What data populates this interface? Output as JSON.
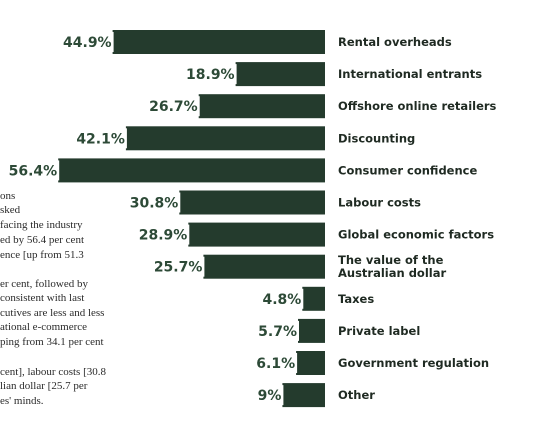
{
  "background_text": {
    "lines": [
      "ons",
      "sked",
      "facing the industry",
      "ed by 56.4 per cent",
      "ence [up from 51.3",
      "er cent, followed by",
      "consistent with last",
      "cutives are less and less",
      "ational e-commerce",
      "ping from 34.1 per cent",
      "cent], labour costs [30.8",
      "lian dollar [25.7 per",
      "es' minds."
    ]
  },
  "chart_data": {
    "type": "bar",
    "orientation": "horizontal",
    "bar_color": "#243b2d",
    "label_color": "#2d4a37",
    "title": "",
    "xlabel": "",
    "ylabel": "",
    "value_suffix": "%",
    "xlim": [
      0,
      60
    ],
    "categories": [
      [
        "Rental overheads"
      ],
      [
        "International entrants"
      ],
      [
        "Offshore online retailers"
      ],
      [
        "Discounting"
      ],
      [
        "Consumer confidence"
      ],
      [
        "Labour costs"
      ],
      [
        "Global economic factors"
      ],
      [
        "The value of the",
        "Australian dollar"
      ],
      [
        "Taxes"
      ],
      [
        "Private label"
      ],
      [
        "Government regulation"
      ],
      [
        "Other"
      ]
    ],
    "values": [
      44.9,
      18.9,
      26.7,
      42.1,
      56.4,
      30.8,
      28.9,
      25.7,
      4.8,
      5.7,
      6.1,
      9
    ]
  }
}
